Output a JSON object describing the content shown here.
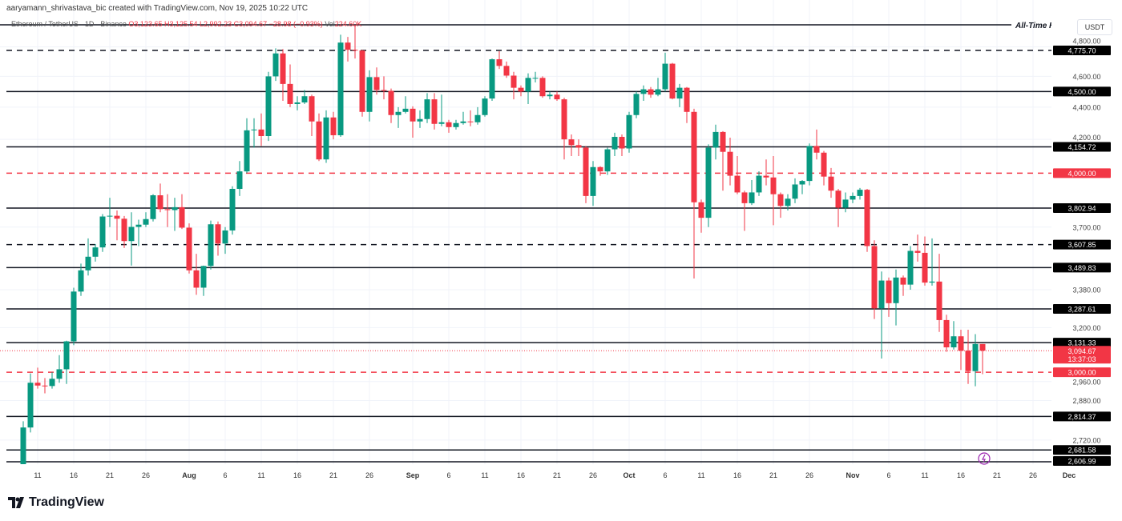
{
  "attribution": "aaryamann_shrivastava_bic created with TradingView.com, Nov 19, 2025 10:22 UTC",
  "legend": {
    "symbol": "Ethereum / TetherUS · 1D · Binance",
    "open": "O3,123.65",
    "high": "H3,125.54",
    "low": "L2,992.23",
    "close": "C3,094.67",
    "change": "−28.98 (−0.93%)",
    "vol_label": "Vol",
    "vol": "224.60K"
  },
  "currency": "USDT",
  "brand": "TradingView",
  "colors": {
    "up": "#089981",
    "down": "#f23645",
    "line": "#131722",
    "red_line": "#f23645"
  },
  "chart_data": {
    "type": "candlestick",
    "scale": "log",
    "grid": true,
    "price_ticks": [
      "4,800.00",
      "4,600.00",
      "4,400.00",
      "4,200.00",
      "3,700.00",
      "3,380.00",
      "3,200.00",
      "2,960.00",
      "2,880.00",
      "2,720.00"
    ],
    "time_ticks": [
      {
        "label": "11",
        "date": "2025-07-11"
      },
      {
        "label": "16",
        "date": "2025-07-16"
      },
      {
        "label": "21",
        "date": "2025-07-21"
      },
      {
        "label": "26",
        "date": "2025-07-26"
      },
      {
        "label": "Aug",
        "date": "2025-08-01"
      },
      {
        "label": "6",
        "date": "2025-08-06"
      },
      {
        "label": "11",
        "date": "2025-08-11"
      },
      {
        "label": "16",
        "date": "2025-08-16"
      },
      {
        "label": "21",
        "date": "2025-08-21"
      },
      {
        "label": "26",
        "date": "2025-08-26"
      },
      {
        "label": "Sep",
        "date": "2025-09-01"
      },
      {
        "label": "6",
        "date": "2025-09-06"
      },
      {
        "label": "11",
        "date": "2025-09-11"
      },
      {
        "label": "16",
        "date": "2025-09-16"
      },
      {
        "label": "21",
        "date": "2025-09-21"
      },
      {
        "label": "26",
        "date": "2025-09-26"
      },
      {
        "label": "Oct",
        "date": "2025-10-01"
      },
      {
        "label": "6",
        "date": "2025-10-06"
      },
      {
        "label": "11",
        "date": "2025-10-11"
      },
      {
        "label": "16",
        "date": "2025-10-16"
      },
      {
        "label": "21",
        "date": "2025-10-21"
      },
      {
        "label": "26",
        "date": "2025-10-26"
      },
      {
        "label": "Nov",
        "date": "2025-11-01"
      },
      {
        "label": "6",
        "date": "2025-11-06"
      },
      {
        "label": "11",
        "date": "2025-11-11"
      },
      {
        "label": "16",
        "date": "2025-11-16"
      },
      {
        "label": "21",
        "date": "2025-11-21"
      },
      {
        "label": "26",
        "date": "2025-11-26"
      },
      {
        "label": "Dec",
        "date": "2025-12-01"
      }
    ],
    "ath": {
      "label": "All-Time High",
      "value": 4956
    },
    "levels": [
      {
        "value": 4775.7,
        "label": "4,775.70",
        "style": "dashed",
        "color": "black"
      },
      {
        "value": 4500.0,
        "label": "4,500.00",
        "style": "solid",
        "color": "black"
      },
      {
        "value": 4154.72,
        "label": "4,154.72",
        "style": "solid",
        "color": "black"
      },
      {
        "value": 4000.0,
        "label": "4,000.00",
        "style": "dashed",
        "color": "red"
      },
      {
        "value": 3802.94,
        "label": "3,802.94",
        "style": "solid",
        "color": "black"
      },
      {
        "value": 3607.85,
        "label": "3,607.85",
        "style": "dashed",
        "color": "black"
      },
      {
        "value": 3489.83,
        "label": "3,489.83",
        "style": "solid",
        "color": "black"
      },
      {
        "value": 3287.61,
        "label": "3,287.61",
        "style": "solid",
        "color": "black"
      },
      {
        "value": 3131.33,
        "label": "3,131.33",
        "style": "solid",
        "color": "black"
      },
      {
        "value": 3000.0,
        "label": "3,000.00",
        "style": "dashed",
        "color": "red"
      },
      {
        "value": 2814.37,
        "label": "2,814.37",
        "style": "solid",
        "color": "black"
      },
      {
        "value": 2681.58,
        "label": "2,681.58",
        "style": "solid",
        "color": "black"
      },
      {
        "value": 2606.99,
        "label": "2,606.99",
        "style": "solid",
        "color": "black"
      }
    ],
    "last_price": {
      "value": 3094.67,
      "label": "3,094.67",
      "countdown": "13:37:03"
    },
    "start_date": "2025-07-09",
    "ohlc": [
      [
        2615,
        2795,
        2605,
        2770
      ],
      [
        2770,
        2995,
        2750,
        2955
      ],
      [
        2955,
        3020,
        2930,
        2943
      ],
      [
        2943,
        2975,
        2910,
        2941
      ],
      [
        2941,
        3000,
        2930,
        2972
      ],
      [
        2972,
        3075,
        2955,
        3013
      ],
      [
        3013,
        3140,
        2950,
        3137
      ],
      [
        3137,
        3390,
        3120,
        3371
      ],
      [
        3371,
        3510,
        3350,
        3476
      ],
      [
        3476,
        3640,
        3450,
        3545
      ],
      [
        3545,
        3610,
        3520,
        3593
      ],
      [
        3593,
        3770,
        3570,
        3757
      ],
      [
        3757,
        3860,
        3700,
        3761
      ],
      [
        3761,
        3790,
        3630,
        3745
      ],
      [
        3745,
        3760,
        3590,
        3626
      ],
      [
        3626,
        3780,
        3500,
        3701
      ],
      [
        3701,
        3740,
        3600,
        3713
      ],
      [
        3713,
        3780,
        3700,
        3743
      ],
      [
        3743,
        3880,
        3730,
        3874
      ],
      [
        3874,
        3940,
        3780,
        3797
      ],
      [
        3797,
        3880,
        3700,
        3792
      ],
      [
        3792,
        3860,
        3680,
        3808
      ],
      [
        3808,
        3880,
        3690,
        3697
      ],
      [
        3697,
        3720,
        3460,
        3476
      ],
      [
        3476,
        3560,
        3355,
        3390
      ],
      [
        3390,
        3500,
        3350,
        3498
      ],
      [
        3498,
        3735,
        3480,
        3715
      ],
      [
        3715,
        3730,
        3550,
        3613
      ],
      [
        3613,
        3700,
        3560,
        3682
      ],
      [
        3682,
        3925,
        3660,
        3910
      ],
      [
        3910,
        4070,
        3870,
        4010
      ],
      [
        4010,
        4330,
        4000,
        4255
      ],
      [
        4255,
        4330,
        4150,
        4260
      ],
      [
        4260,
        4360,
        4160,
        4220
      ],
      [
        4220,
        4630,
        4190,
        4600
      ],
      [
        4600,
        4790,
        4570,
        4755
      ],
      [
        4755,
        4785,
        4440,
        4550
      ],
      [
        4550,
        4680,
        4400,
        4420
      ],
      [
        4420,
        4470,
        4380,
        4430
      ],
      [
        4430,
        4510,
        4420,
        4470
      ],
      [
        4470,
        4480,
        4220,
        4310
      ],
      [
        4310,
        4360,
        4070,
        4080
      ],
      [
        4080,
        4380,
        4060,
        4335
      ],
      [
        4335,
        4370,
        4200,
        4225
      ],
      [
        4225,
        4885,
        4215,
        4830
      ],
      [
        4830,
        4870,
        4700,
        4780
      ],
      [
        4780,
        4956,
        4720,
        4775
      ],
      [
        4775,
        4780,
        4340,
        4370
      ],
      [
        4370,
        4640,
        4310,
        4595
      ],
      [
        4595,
        4660,
        4480,
        4510
      ],
      [
        4510,
        4600,
        4450,
        4505
      ],
      [
        4505,
        4520,
        4300,
        4350
      ],
      [
        4350,
        4400,
        4270,
        4370
      ],
      [
        4370,
        4470,
        4360,
        4390
      ],
      [
        4390,
        4405,
        4210,
        4310
      ],
      [
        4310,
        4380,
        4270,
        4325
      ],
      [
        4325,
        4490,
        4300,
        4450
      ],
      [
        4450,
        4490,
        4260,
        4295
      ],
      [
        4295,
        4480,
        4280,
        4305
      ],
      [
        4305,
        4320,
        4240,
        4275
      ],
      [
        4275,
        4320,
        4260,
        4300
      ],
      [
        4300,
        4370,
        4290,
        4310
      ],
      [
        4310,
        4380,
        4280,
        4305
      ],
      [
        4305,
        4400,
        4290,
        4350
      ],
      [
        4350,
        4470,
        4340,
        4455
      ],
      [
        4455,
        4720,
        4440,
        4715
      ],
      [
        4715,
        4770,
        4650,
        4670
      ],
      [
        4670,
        4700,
        4590,
        4605
      ],
      [
        4605,
        4630,
        4450,
        4525
      ],
      [
        4525,
        4540,
        4470,
        4500
      ],
      [
        4500,
        4620,
        4420,
        4590
      ],
      [
        4590,
        4630,
        4560,
        4590
      ],
      [
        4590,
        4600,
        4460,
        4470
      ],
      [
        4470,
        4500,
        4450,
        4480
      ],
      [
        4480,
        4500,
        4440,
        4450
      ],
      [
        4450,
        4460,
        4080,
        4200
      ],
      [
        4200,
        4230,
        4100,
        4165
      ],
      [
        4165,
        4200,
        4100,
        4150
      ],
      [
        4150,
        4160,
        3830,
        3870
      ],
      [
        3870,
        4070,
        3815,
        4035
      ],
      [
        4035,
        4040,
        3985,
        4010
      ],
      [
        4010,
        4150,
        3990,
        4140
      ],
      [
        4140,
        4240,
        4100,
        4215
      ],
      [
        4215,
        4230,
        4100,
        4145
      ],
      [
        4145,
        4370,
        4120,
        4350
      ],
      [
        4350,
        4500,
        4330,
        4485
      ],
      [
        4485,
        4540,
        4440,
        4515
      ],
      [
        4515,
        4530,
        4460,
        4480
      ],
      [
        4480,
        4590,
        4470,
        4515
      ],
      [
        4515,
        4760,
        4500,
        4685
      ],
      [
        4685,
        4690,
        4450,
        4455
      ],
      [
        4455,
        4550,
        4400,
        4525
      ],
      [
        4525,
        4530,
        4300,
        4370
      ],
      [
        4370,
        4390,
        3435,
        3835
      ],
      [
        3835,
        3850,
        3670,
        3750
      ],
      [
        3750,
        4170,
        3700,
        4150
      ],
      [
        4150,
        4290,
        4080,
        4245
      ],
      [
        4245,
        4250,
        3900,
        4125
      ],
      [
        4125,
        4210,
        3930,
        3985
      ],
      [
        3985,
        4100,
        3880,
        3890
      ],
      [
        3890,
        3900,
        3680,
        3830
      ],
      [
        3830,
        3960,
        3820,
        3890
      ],
      [
        3890,
        4010,
        3870,
        3985
      ],
      [
        3985,
        4080,
        3930,
        3975
      ],
      [
        3975,
        4100,
        3710,
        3880
      ],
      [
        3880,
        3890,
        3750,
        3815
      ],
      [
        3815,
        3880,
        3790,
        3855
      ],
      [
        3855,
        3970,
        3830,
        3935
      ],
      [
        3935,
        3960,
        3880,
        3955
      ],
      [
        3955,
        4175,
        3930,
        4160
      ],
      [
        4160,
        4260,
        4080,
        4120
      ],
      [
        4120,
        4130,
        3930,
        3980
      ],
      [
        3980,
        4030,
        3860,
        3900
      ],
      [
        3900,
        3910,
        3700,
        3805
      ],
      [
        3805,
        3890,
        3780,
        3850
      ],
      [
        3850,
        3890,
        3830,
        3870
      ],
      [
        3870,
        3915,
        3850,
        3905
      ],
      [
        3905,
        3910,
        3570,
        3600
      ],
      [
        3600,
        3630,
        3240,
        3290
      ],
      [
        3290,
        3470,
        3060,
        3425
      ],
      [
        3425,
        3440,
        3250,
        3315
      ],
      [
        3315,
        3480,
        3210,
        3440
      ],
      [
        3440,
        3450,
        3350,
        3405
      ],
      [
        3405,
        3600,
        3380,
        3575
      ],
      [
        3575,
        3660,
        3520,
        3565
      ],
      [
        3565,
        3650,
        3400,
        3415
      ],
      [
        3415,
        3640,
        3400,
        3420
      ],
      [
        3420,
        3560,
        3180,
        3235
      ],
      [
        3235,
        3260,
        3090,
        3110
      ],
      [
        3110,
        3230,
        3100,
        3160
      ],
      [
        3160,
        3190,
        3010,
        3095
      ],
      [
        3095,
        3190,
        2950,
        3005
      ],
      [
        3005,
        3170,
        2940,
        3125
      ],
      [
        3125,
        3125,
        2992,
        3095
      ]
    ]
  }
}
